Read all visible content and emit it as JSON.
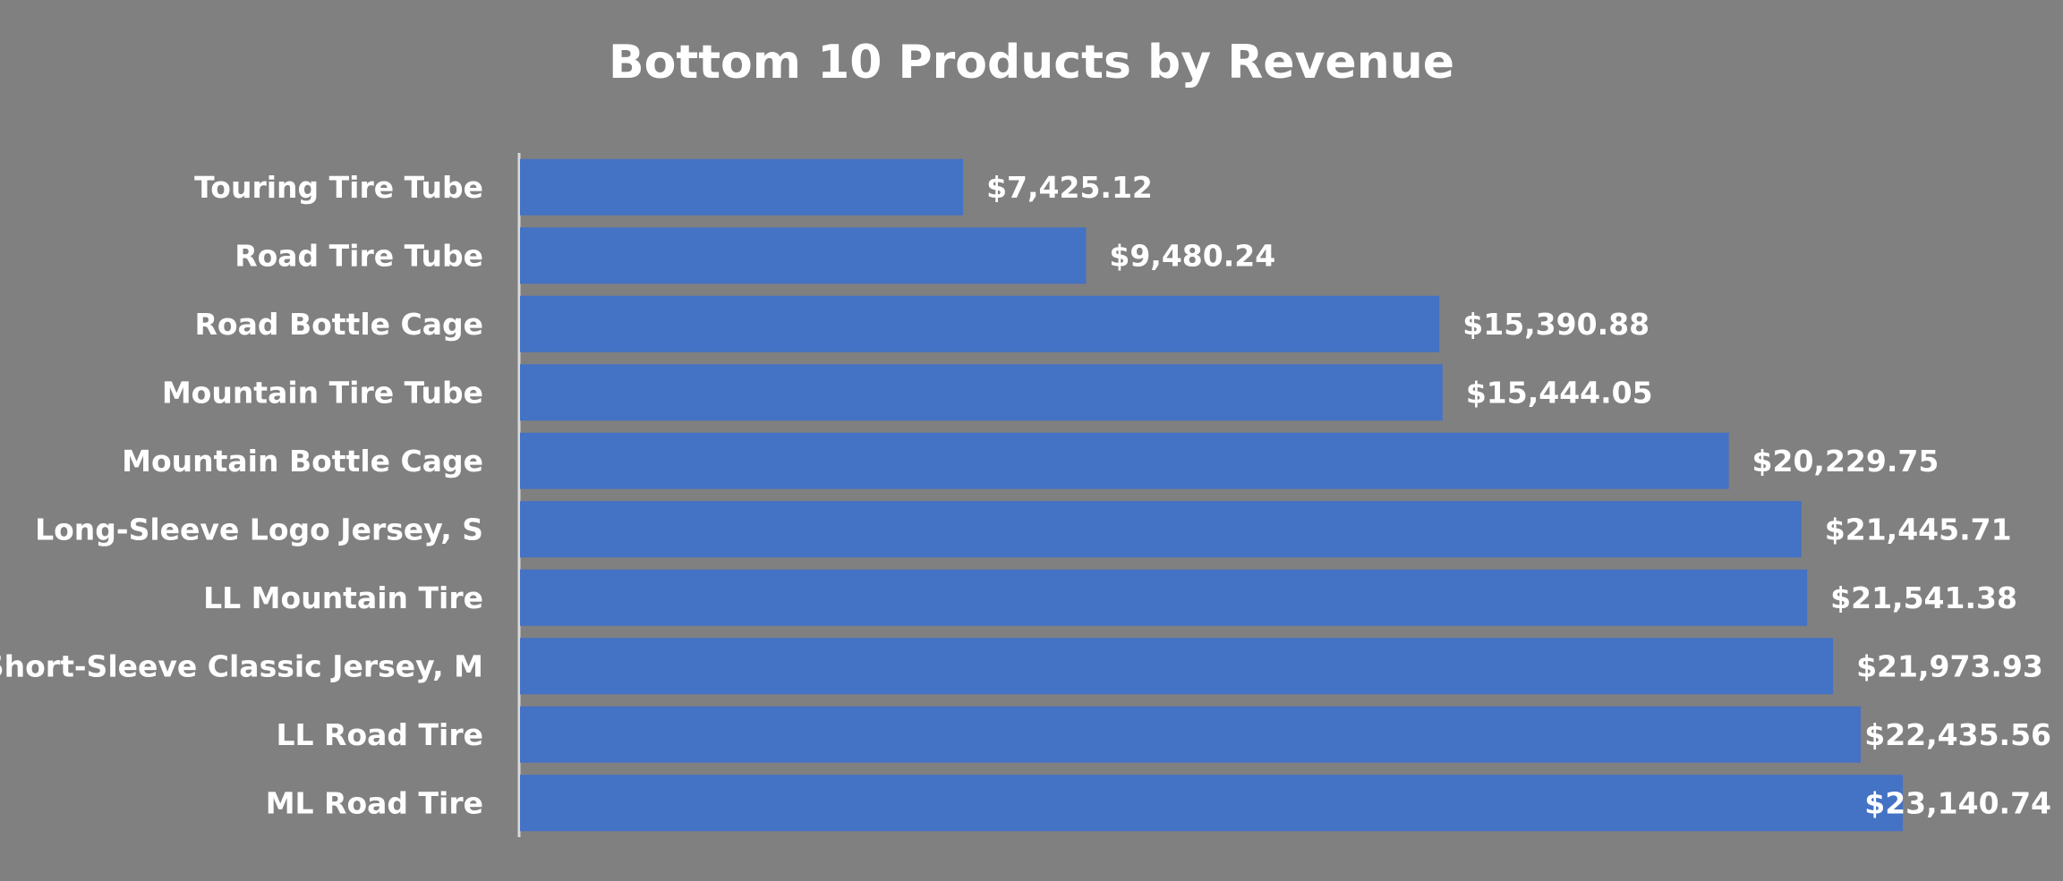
{
  "chart_data": {
    "type": "bar",
    "orientation": "horizontal",
    "title": "Bottom 10 Products by Revenue",
    "xlabel": "",
    "ylabel": "",
    "categories": [
      "Touring Tire Tube",
      "Road Tire Tube",
      "Road Bottle Cage",
      "Mountain Tire Tube",
      "Mountain Bottle Cage",
      "Long-Sleeve Logo Jersey, S",
      "LL Mountain Tire",
      "Short-Sleeve Classic Jersey, M",
      "LL Road Tire",
      "ML Road Tire"
    ],
    "values": [
      7425.12,
      9480.24,
      15390.88,
      15444.05,
      20229.75,
      21445.71,
      21541.38,
      21973.93,
      22435.56,
      23140.74
    ],
    "value_labels": [
      "$7,425.12",
      "$9,480.24",
      "$15,390.88",
      "$15,444.05",
      "$20,229.75",
      "$21,445.71",
      "$21,541.38",
      "$21,973.93",
      "$22,435.56",
      "$23,140.74"
    ],
    "xlim": [
      0,
      23200
    ],
    "grid": false,
    "legend": "none",
    "colors": {
      "bar": "#4472C4",
      "background": "#808080",
      "text": "#FFFFFF",
      "axis": "#D9D9D9"
    }
  }
}
